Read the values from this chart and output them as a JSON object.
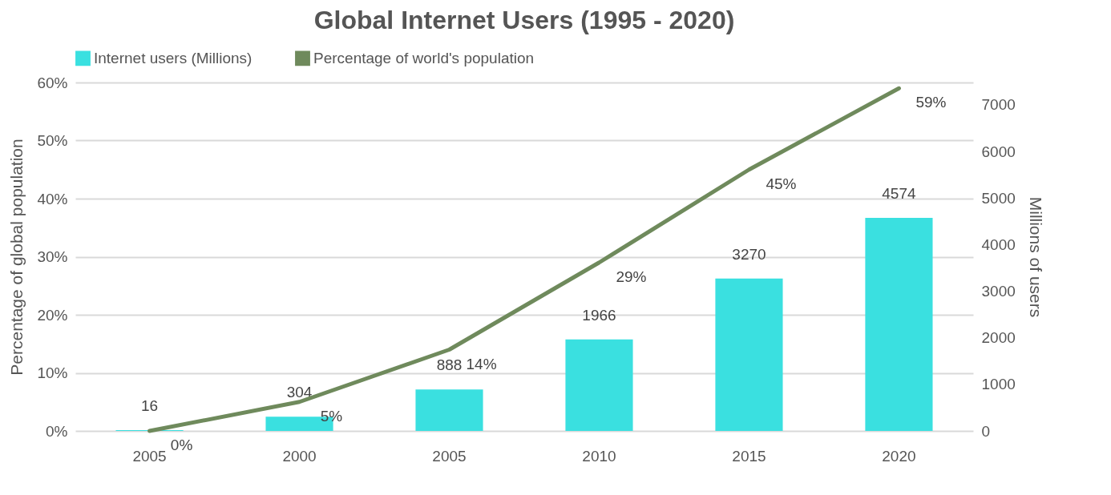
{
  "chart_data": {
    "type": "bar",
    "title": "Global Internet Users (1995 - 2020)",
    "categories": [
      "2005",
      "2000",
      "2005",
      "2010",
      "2015",
      "2020"
    ],
    "series": [
      {
        "name": "Internet users (Millions)",
        "type": "bar",
        "axis": "y2",
        "color": "#3ae0e0",
        "values": [
          16,
          304,
          888,
          1966,
          3270,
          4574
        ],
        "value_labels": [
          "16",
          "304",
          "888",
          "1966",
          "3270",
          "4574"
        ]
      },
      {
        "name": "Percentage of world's population",
        "type": "line",
        "color": "#6f8a5c",
        "values": [
          0,
          5,
          14,
          29,
          45,
          59
        ],
        "value_labels": [
          "0%",
          "5%",
          "14%",
          "29%",
          "45%",
          "59%"
        ]
      }
    ],
    "ylabel": "Percentage of global population",
    "y2label": "Millions of users",
    "ylim": [
      0,
      60
    ],
    "yticks": [
      {
        "value": 0,
        "label": "0%"
      },
      {
        "value": 10,
        "label": "10%"
      },
      {
        "value": 20,
        "label": "20%"
      },
      {
        "value": 30,
        "label": "30%"
      },
      {
        "value": 40,
        "label": "40%"
      },
      {
        "value": 50,
        "label": "50%"
      },
      {
        "value": 60,
        "label": "60%"
      }
    ],
    "y2lim": [
      0,
      7480
    ],
    "y2ticks": [
      0,
      1000,
      2000,
      3000,
      4000,
      5000,
      6000,
      7000
    ],
    "grid": "y",
    "legend": "top",
    "line_style": "solid"
  }
}
